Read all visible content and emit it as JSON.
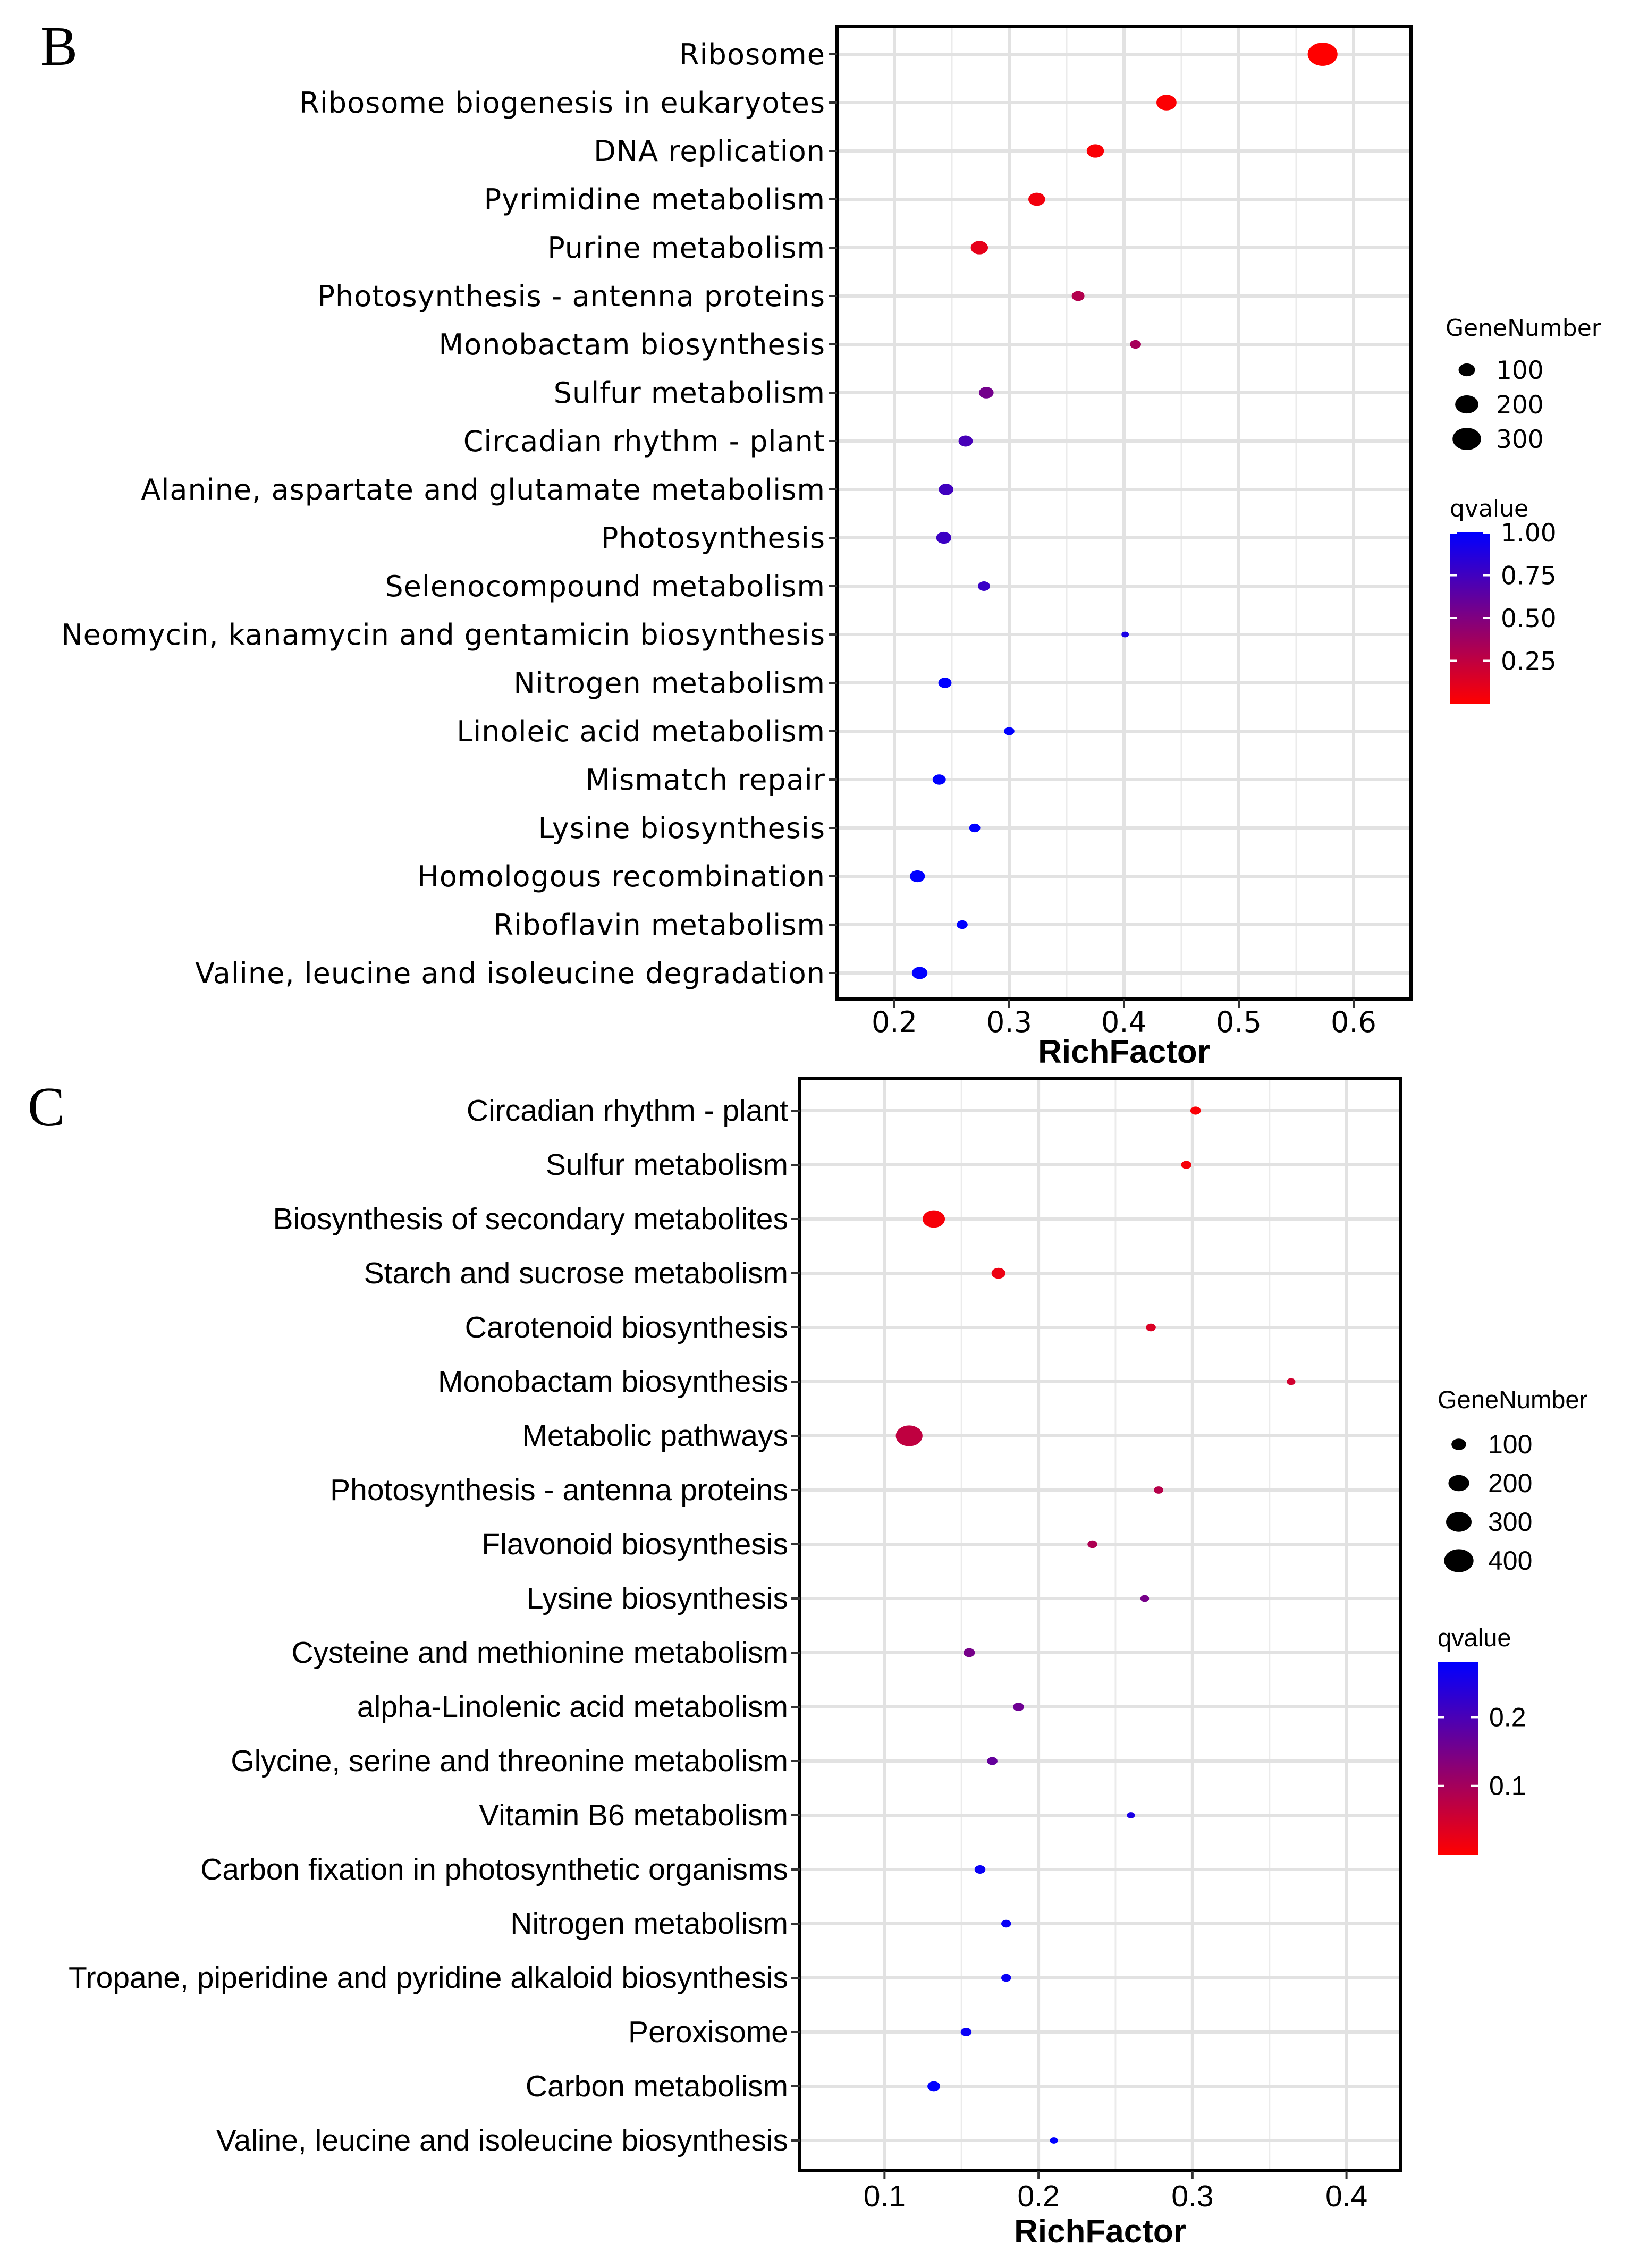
{
  "chart_data": [
    {
      "panel": "B",
      "type": "scatter",
      "title": "",
      "xlabel": "RichFactor",
      "ylabel": "",
      "xlim": [
        0.15,
        0.65
      ],
      "xticks": [
        0.2,
        0.3,
        0.4,
        0.5,
        0.6
      ],
      "xtick_labels": [
        "0.2",
        "0.3",
        "0.4",
        "0.5",
        "0.6"
      ],
      "grid": true,
      "categories": [
        "Ribosome",
        "Ribosome biogenesis in eukaryotes",
        "DNA replication",
        "Pyrimidine metabolism",
        "Purine metabolism",
        "Photosynthesis - antenna proteins",
        "Monobactam biosynthesis",
        "Sulfur metabolism",
        "Circadian rhythm - plant",
        "Alanine, aspartate and glutamate metabolism",
        "Photosynthesis",
        "Selenocompound metabolism",
        "Neomycin, kanamycin and gentamicin biosynthesis",
        "Nitrogen metabolism",
        "Linoleic acid metabolism",
        "Mismatch repair",
        "Lysine biosynthesis",
        "Homologous recombination",
        "Riboflavin metabolism",
        "Valine, leucine and isoleucine degradation"
      ],
      "rich_factor": [
        0.573,
        0.437,
        0.375,
        0.324,
        0.274,
        0.36,
        0.41,
        0.28,
        0.262,
        0.245,
        0.243,
        0.278,
        0.401,
        0.244,
        0.3,
        0.239,
        0.27,
        0.22,
        0.259,
        0.222
      ],
      "gene_number": [
        330,
        150,
        110,
        105,
        110,
        60,
        45,
        80,
        75,
        80,
        85,
        55,
        20,
        65,
        40,
        65,
        45,
        85,
        45,
        90
      ],
      "qvalue": [
        0.0,
        0.01,
        0.02,
        0.05,
        0.1,
        0.3,
        0.35,
        0.55,
        0.72,
        0.75,
        0.77,
        0.78,
        0.9,
        1.0,
        1.0,
        1.0,
        1.0,
        1.0,
        1.0,
        1.0
      ],
      "legend_size": {
        "title": "GeneNumber",
        "values": [
          100,
          200,
          300
        ],
        "labels": [
          "100",
          "200",
          "300"
        ]
      },
      "legend_color": {
        "title": "qvalue",
        "range": [
          0.0,
          1.0
        ],
        "ticks": [
          1.0,
          0.75,
          0.5,
          0.25
        ],
        "labels": [
          "1.00",
          "0.75",
          "0.50",
          "0.25"
        ],
        "low_color": "#ff0000",
        "high_color": "#0000ff"
      }
    },
    {
      "panel": "C",
      "type": "scatter",
      "title": "",
      "xlabel": "RichFactor",
      "ylabel": "",
      "xlim": [
        0.045,
        0.435
      ],
      "xticks": [
        0.1,
        0.2,
        0.3,
        0.4
      ],
      "xtick_labels": [
        "0.1",
        "0.2",
        "0.3",
        "0.4"
      ],
      "grid": true,
      "categories": [
        "Circadian rhythm - plant",
        "Sulfur metabolism",
        "Biosynthesis of secondary metabolites",
        "Starch and sucrose metabolism",
        "Carotenoid biosynthesis",
        "Monobactam biosynthesis",
        "Metabolic pathways",
        "Photosynthesis - antenna proteins",
        "Flavonoid biosynthesis",
        "Lysine biosynthesis",
        "Cysteine and methionine metabolism",
        "alpha-Linolenic acid metabolism",
        "Glycine, serine and threonine metabolism",
        "Vitamin B6 metabolism",
        "Carbon fixation in photosynthetic organisms",
        "Nitrogen metabolism",
        "Tropane, piperidine and pyridine alkaloid biosynthesis",
        "Peroxisome",
        "Carbon metabolism",
        "Valine, leucine and isoleucine biosynthesis"
      ],
      "rich_factor": [
        0.302,
        0.296,
        0.132,
        0.174,
        0.273,
        0.364,
        0.116,
        0.278,
        0.235,
        0.269,
        0.155,
        0.187,
        0.17,
        0.26,
        0.162,
        0.179,
        0.179,
        0.153,
        0.132,
        0.21
      ],
      "gene_number": [
        50,
        50,
        230,
        90,
        45,
        35,
        330,
        40,
        45,
        35,
        60,
        55,
        50,
        30,
        55,
        45,
        45,
        55,
        75,
        30
      ],
      "qvalue": [
        0.005,
        0.01,
        0.01,
        0.02,
        0.04,
        0.05,
        0.07,
        0.08,
        0.09,
        0.15,
        0.15,
        0.16,
        0.17,
        0.25,
        0.27,
        0.27,
        0.27,
        0.27,
        0.28,
        0.28
      ],
      "legend_size": {
        "title": "GeneNumber",
        "values": [
          100,
          200,
          300,
          400
        ],
        "labels": [
          "100",
          "200",
          "300",
          "400"
        ]
      },
      "legend_color": {
        "title": "qvalue",
        "range": [
          0.0,
          0.28
        ],
        "ticks": [
          0.2,
          0.1
        ],
        "labels": [
          "0.2",
          "0.1"
        ],
        "low_color": "#ff0000",
        "high_color": "#0000ff"
      }
    }
  ]
}
